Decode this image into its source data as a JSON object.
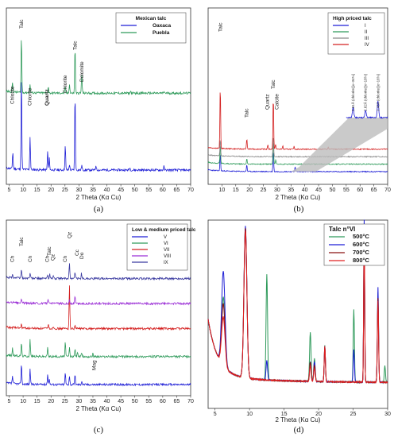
{
  "chart_data": [
    {
      "id": "a",
      "type": "line",
      "panel_label": "(a)",
      "xlabel": "2 Theta (Kα Cu)",
      "xlim": [
        4,
        70
      ],
      "xticks": [
        5,
        10,
        15,
        20,
        25,
        30,
        35,
        40,
        45,
        50,
        55,
        60,
        65,
        70
      ],
      "legend": {
        "title": "Mexican talc",
        "placement": "top-right"
      },
      "series": [
        {
          "name": "Oaxaca",
          "color": "#1f1fd6",
          "baseline": 0.0,
          "noise": 0.012,
          "peaks": [
            [
              6.3,
              0.18
            ],
            [
              9.4,
              1.0
            ],
            [
              12.5,
              0.35
            ],
            [
              18.8,
              0.2
            ],
            [
              19.4,
              0.12
            ],
            [
              25.1,
              0.26
            ],
            [
              26.6,
              0.06
            ],
            [
              28.6,
              0.82
            ],
            [
              31.0,
              0.05
            ],
            [
              36.1,
              0.05
            ],
            [
              48.2,
              0.03
            ],
            [
              60.4,
              0.04
            ]
          ]
        },
        {
          "name": "Puebla",
          "color": "#2e9a5a",
          "baseline": 0.52,
          "noise": 0.012,
          "peaks": [
            [
              6.2,
              0.1
            ],
            [
              9.4,
              0.6
            ],
            [
              12.5,
              0.08
            ],
            [
              19.0,
              0.07
            ],
            [
              25.1,
              0.06
            ],
            [
              26.6,
              0.1
            ],
            [
              28.6,
              0.5
            ],
            [
              31.0,
              0.2
            ],
            [
              48.5,
              0.02
            ],
            [
              60.5,
              0.02
            ]
          ]
        }
      ],
      "annotations": [
        {
          "text": "Chlorite",
          "x": 6.2,
          "bold": false
        },
        {
          "text": "Talc",
          "x": 9.4,
          "bold": false
        },
        {
          "text": "Chlorite",
          "x": 12.4,
          "bold": false
        },
        {
          "text": "Chlorite",
          "x": 25.0,
          "bold": false
        },
        {
          "text": "Quartz",
          "x": 18.5,
          "bold": true
        },
        {
          "text": "Chlorite",
          "x": 25.0,
          "bold": false
        },
        {
          "text": "Talc",
          "x": 28.6,
          "bold": false
        },
        {
          "text": "Dolomite",
          "x": 31.0,
          "bold": false
        }
      ]
    },
    {
      "id": "b",
      "type": "line",
      "panel_label": "(b)",
      "xlabel": "2 Theta (Kα Cu)",
      "xlim": [
        5,
        70
      ],
      "xticks": [
        10,
        15,
        20,
        25,
        30,
        35,
        40,
        45,
        50,
        55,
        60,
        65,
        70
      ],
      "legend": {
        "title": "High priced talc",
        "placement": "top-right"
      },
      "series": [
        {
          "name": "I",
          "color": "#1f1fd6",
          "baseline": 0.0,
          "noise": 0.006,
          "peaks": [
            [
              9.4,
              0.2
            ],
            [
              19.0,
              0.08
            ],
            [
              28.6,
              0.25
            ],
            [
              36.5,
              0.06
            ]
          ]
        },
        {
          "name": "II",
          "color": "#2e9a5a",
          "baseline": 0.09,
          "noise": 0.006,
          "peaks": [
            [
              9.4,
              0.22
            ],
            [
              19.0,
              0.06
            ],
            [
              28.6,
              0.28
            ],
            [
              29.5,
              0.05
            ]
          ]
        },
        {
          "name": "III",
          "color": "#8a8a8a",
          "baseline": 0.18,
          "noise": 0.006,
          "peaks": [
            [
              9.4,
              0.2
            ],
            [
              28.6,
              0.25
            ]
          ]
        },
        {
          "name": "IV",
          "color": "#d42020",
          "baseline": 0.27,
          "noise": 0.006,
          "peaks": [
            [
              9.4,
              0.73
            ],
            [
              19.0,
              0.12
            ],
            [
              26.6,
              0.05
            ],
            [
              28.6,
              0.62
            ],
            [
              29.4,
              0.06
            ],
            [
              32.0,
              0.04
            ],
            [
              36.1,
              0.03
            ],
            [
              48.5,
              0.02
            ]
          ]
        }
      ],
      "annotations": [
        {
          "text": "Talc",
          "x": 9.4
        },
        {
          "text": "Talc",
          "x": 19.0
        },
        {
          "text": "Quartz",
          "x": 26.4
        },
        {
          "text": "Talc",
          "x": 28.6
        },
        {
          "text": "Calcite",
          "x": 29.9
        }
      ],
      "inset_labels": [
        {
          "text": "2.61Å (chlorite)[x~34%]",
          "x": 57.5
        },
        {
          "text": "2.62Å (chlorite)[x~18%]",
          "x": 62.0
        },
        {
          "text": "2.48Å (chlorite)[x~16%]",
          "x": 66.5
        }
      ]
    },
    {
      "id": "c",
      "type": "line",
      "panel_label": "(c)",
      "xlabel": "2 Theta (Kα Cu)",
      "xlim": [
        4,
        70
      ],
      "xticks": [
        5,
        10,
        15,
        20,
        25,
        30,
        35,
        40,
        45,
        50,
        55,
        60,
        65,
        70
      ],
      "legend": {
        "title": "Low & medium priced talc",
        "placement": "top-right"
      },
      "series": [
        {
          "name": "V",
          "color": "#1f1fd6",
          "baseline": 0.0,
          "noise": 0.014,
          "peaks": [
            [
              6.2,
              0.1
            ],
            [
              9.4,
              0.28
            ],
            [
              12.5,
              0.2
            ],
            [
              18.8,
              0.14
            ],
            [
              19.4,
              0.08
            ],
            [
              25.1,
              0.16
            ],
            [
              26.6,
              0.12
            ],
            [
              28.6,
              0.13
            ],
            [
              31.0,
              0.05
            ]
          ]
        },
        {
          "name": "VI",
          "color": "#2e9a5a",
          "baseline": 0.19,
          "noise": 0.014,
          "peaks": [
            [
              6.2,
              0.1
            ],
            [
              9.4,
              0.18
            ],
            [
              12.5,
              0.22
            ],
            [
              18.8,
              0.12
            ],
            [
              25.1,
              0.2
            ],
            [
              26.6,
              0.12
            ],
            [
              28.6,
              0.1
            ],
            [
              29.5,
              0.07
            ],
            [
              31.0,
              0.05
            ],
            [
              35.0,
              0.05
            ]
          ]
        },
        {
          "name": "VII",
          "color": "#d42020",
          "baseline": 0.38,
          "noise": 0.014,
          "peaks": [
            [
              9.4,
              0.05
            ],
            [
              19.0,
              0.06
            ],
            [
              20.9,
              0.03
            ],
            [
              26.6,
              0.6
            ],
            [
              28.6,
              0.05
            ]
          ]
        },
        {
          "name": "VIII",
          "color": "#9b2fd6",
          "baseline": 0.55,
          "noise": 0.014,
          "peaks": [
            [
              9.4,
              0.06
            ],
            [
              19.0,
              0.05
            ],
            [
              26.6,
              0.05
            ],
            [
              28.6,
              0.1
            ]
          ]
        },
        {
          "name": "IX",
          "color": "#3a3aa0",
          "baseline": 0.72,
          "noise": 0.014,
          "peaks": [
            [
              6.2,
              0.05
            ],
            [
              9.4,
              0.12
            ],
            [
              12.5,
              0.07
            ],
            [
              18.8,
              0.05
            ],
            [
              19.5,
              0.06
            ],
            [
              20.8,
              0.04
            ],
            [
              26.6,
              0.22
            ],
            [
              28.6,
              0.08
            ],
            [
              30.9,
              0.08
            ]
          ]
        }
      ],
      "annotations": [
        {
          "text": "Ch",
          "x": 6.2
        },
        {
          "text": "Talc",
          "x": 9.4
        },
        {
          "text": "Ch",
          "x": 12.5
        },
        {
          "text": "Ch",
          "x": 18.6
        },
        {
          "text": "Qz",
          "x": 20.6
        },
        {
          "text": "Talc",
          "x": 19.4
        },
        {
          "text": "Ch",
          "x": 25.0
        },
        {
          "text": "Qz",
          "x": 26.6
        },
        {
          "text": "Cc",
          "x": 29.3
        },
        {
          "text": "Do",
          "x": 31.0
        },
        {
          "text": "Mag",
          "x": 35.5
        }
      ]
    },
    {
      "id": "d",
      "type": "line",
      "panel_label": "(d)",
      "xlabel": "2 Theta (Kα Cu)",
      "xlim": [
        4,
        30
      ],
      "xticks": [
        5,
        10,
        15,
        20,
        25,
        30
      ],
      "legend": {
        "title": "Talc n°VI",
        "placement": "top-right"
      },
      "series": [
        {
          "name": "500°C",
          "color": "#2e9a5a",
          "noise": 0.004,
          "peaks": [
            [
              6.2,
              0.42,
              0.35
            ],
            [
              9.4,
              0.92,
              0.3
            ],
            [
              12.5,
              0.65,
              0.15
            ],
            [
              18.8,
              0.3,
              0.15
            ],
            [
              19.4,
              0.14,
              0.15
            ],
            [
              20.9,
              0.22,
              0.12
            ],
            [
              25.1,
              0.45,
              0.12
            ],
            [
              26.6,
              0.98,
              0.1
            ],
            [
              28.6,
              0.55,
              0.12
            ],
            [
              29.6,
              0.1,
              0.12
            ]
          ]
        },
        {
          "name": "600°C",
          "color": "#1f1fd6",
          "noise": 0.004,
          "peaks": [
            [
              6.2,
              0.58,
              0.35
            ],
            [
              9.4,
              0.93,
              0.3
            ],
            [
              12.5,
              0.12,
              0.15
            ],
            [
              18.8,
              0.12,
              0.15
            ],
            [
              19.4,
              0.12,
              0.15
            ],
            [
              20.9,
              0.22,
              0.12
            ],
            [
              25.1,
              0.2,
              0.12
            ],
            [
              26.6,
              1.0,
              0.1
            ],
            [
              28.6,
              0.58,
              0.12
            ]
          ]
        },
        {
          "name": "700°C",
          "color": "#8b1010",
          "noise": 0.004,
          "peaks": [
            [
              6.2,
              0.38,
              0.35
            ],
            [
              9.4,
              0.92,
              0.3
            ],
            [
              18.8,
              0.12,
              0.15
            ],
            [
              19.4,
              0.1,
              0.15
            ],
            [
              20.9,
              0.22,
              0.12
            ],
            [
              26.6,
              0.96,
              0.1
            ],
            [
              28.6,
              0.52,
              0.12
            ]
          ]
        },
        {
          "name": "800°C",
          "color": "#e02020",
          "noise": 0.004,
          "peaks": [
            [
              6.2,
              0.3,
              0.35
            ],
            [
              9.4,
              0.9,
              0.3
            ],
            [
              18.8,
              0.1,
              0.15
            ],
            [
              19.4,
              0.08,
              0.15
            ],
            [
              20.9,
              0.22,
              0.12
            ],
            [
              26.6,
              0.95,
              0.1
            ],
            [
              28.6,
              0.5,
              0.12
            ]
          ]
        }
      ]
    }
  ]
}
